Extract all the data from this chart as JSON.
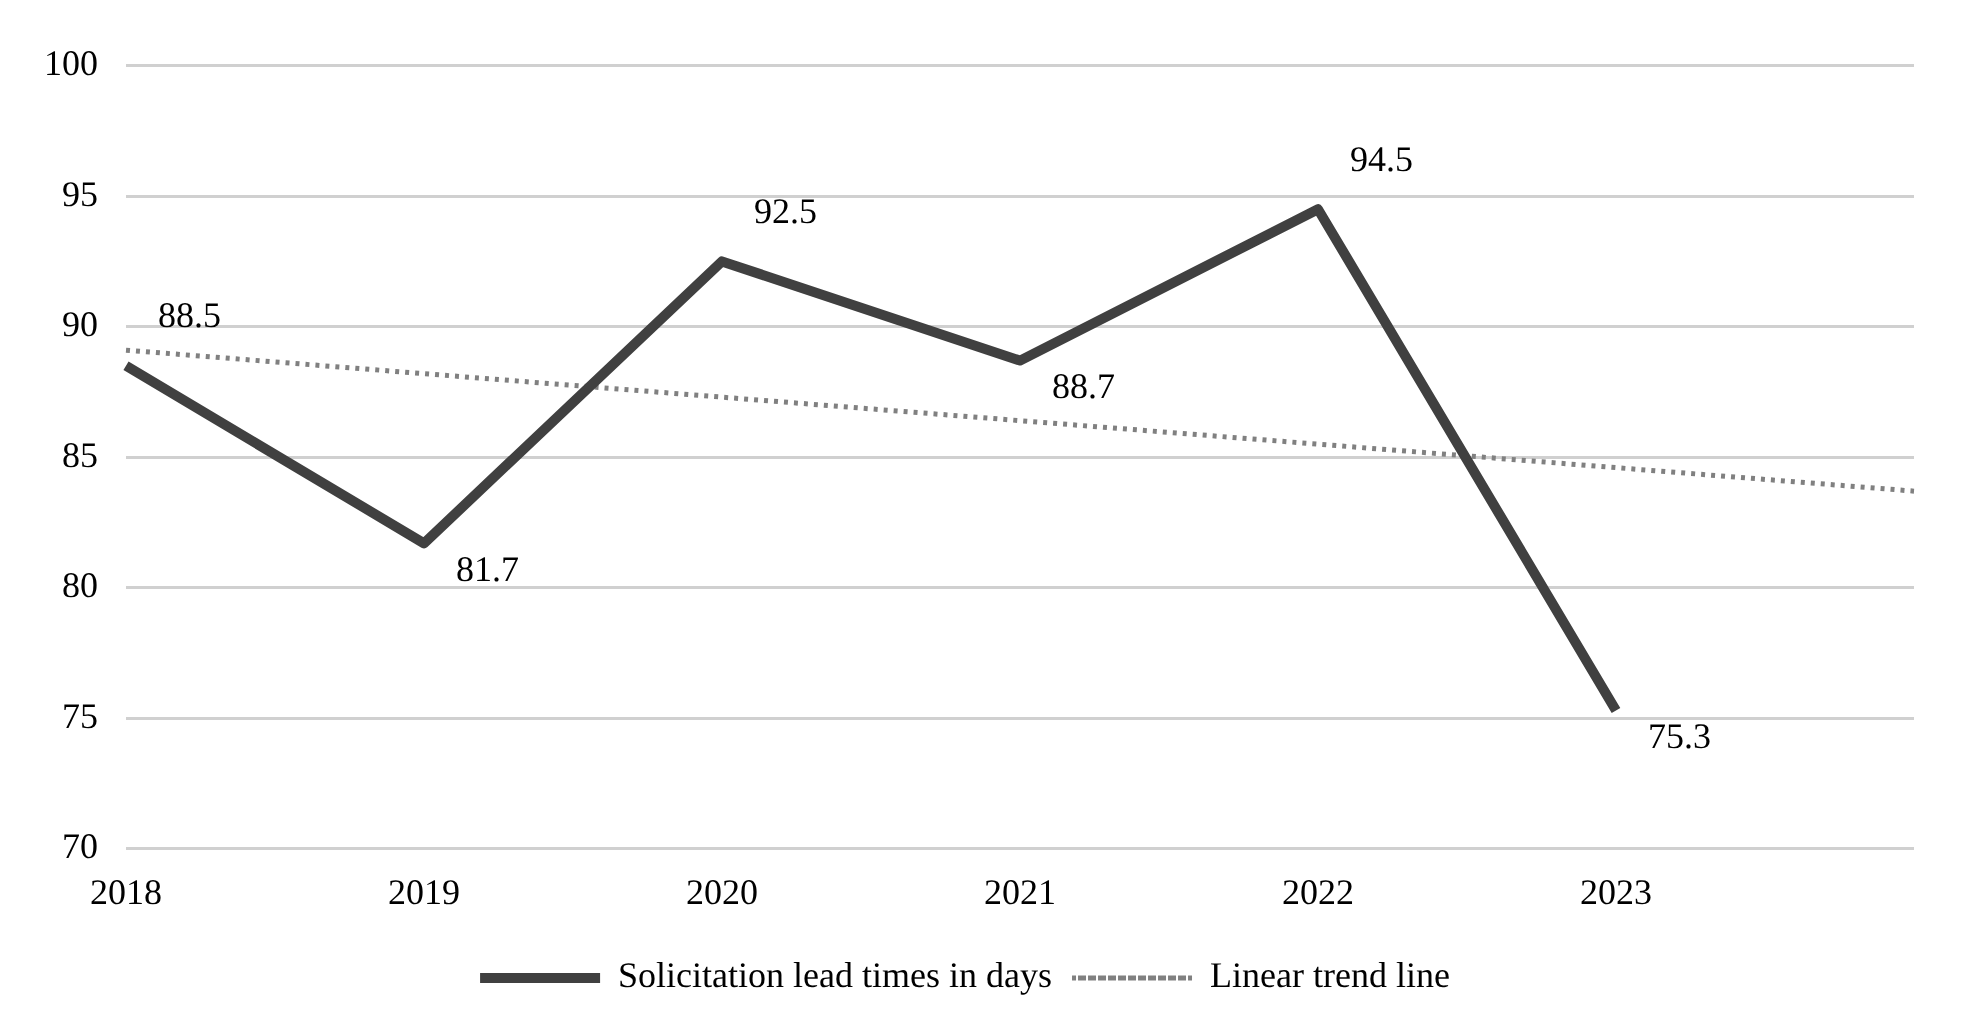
{
  "chart_data": {
    "type": "line",
    "categories": [
      "2018",
      "2019",
      "2020",
      "2021",
      "2022",
      "2023",
      null
    ],
    "ylim": [
      70,
      100
    ],
    "yticks": [
      70,
      75,
      80,
      85,
      90,
      95,
      100
    ],
    "grid": "y",
    "legend": "bottom",
    "marker": "none",
    "series": [
      {
        "name": "Solicitation lead times in days",
        "color": "#404040",
        "line_style": "solid",
        "values": [
          88.5,
          81.7,
          92.5,
          88.7,
          94.5,
          75.3,
          null
        ],
        "value_labels": [
          "88.5",
          "81.7",
          "92.5",
          "88.7",
          "94.5",
          "75.3",
          null
        ]
      },
      {
        "name": "Linear trend line",
        "color": "#808080",
        "line_style": "dotted",
        "values": [
          89.1,
          88.2,
          87.3,
          86.4,
          85.5,
          84.6,
          83.7
        ]
      }
    ]
  }
}
